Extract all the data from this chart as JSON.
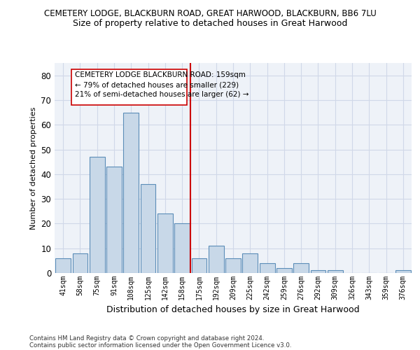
{
  "title": "CEMETERY LODGE, BLACKBURN ROAD, GREAT HARWOOD, BLACKBURN, BB6 7LU",
  "subtitle": "Size of property relative to detached houses in Great Harwood",
  "xlabel": "Distribution of detached houses by size in Great Harwood",
  "ylabel": "Number of detached properties",
  "categories": [
    "41sqm",
    "58sqm",
    "75sqm",
    "91sqm",
    "108sqm",
    "125sqm",
    "142sqm",
    "158sqm",
    "175sqm",
    "192sqm",
    "209sqm",
    "225sqm",
    "242sqm",
    "259sqm",
    "276sqm",
    "292sqm",
    "309sqm",
    "326sqm",
    "343sqm",
    "359sqm",
    "376sqm"
  ],
  "values": [
    6,
    8,
    47,
    43,
    65,
    36,
    24,
    20,
    6,
    11,
    6,
    8,
    4,
    2,
    4,
    1,
    1,
    0,
    0,
    0,
    1
  ],
  "bar_color": "#c8d8e8",
  "bar_edge_color": "#5b8db8",
  "vline_x": 7.5,
  "vline_color": "#cc0000",
  "annotation_text": "CEMETERY LODGE BLACKBURN ROAD: 159sqm\n← 79% of detached houses are smaller (229)\n21% of semi-detached houses are larger (62) →",
  "ylim": [
    0,
    85
  ],
  "yticks": [
    0,
    10,
    20,
    30,
    40,
    50,
    60,
    70,
    80
  ],
  "grid_color": "#d0d8e8",
  "background_color": "#eef2f8",
  "footer1": "Contains HM Land Registry data © Crown copyright and database right 2024.",
  "footer2": "Contains public sector information licensed under the Open Government Licence v3.0."
}
